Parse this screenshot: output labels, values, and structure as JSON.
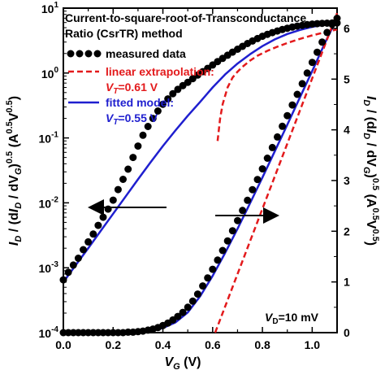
{
  "chart_data": {
    "type": "scatter",
    "title": "Current-to-square-root-of-Transconductance Ratio (CsrTR) method",
    "title_lines": [
      "Current-to-square-root-of-Transconductance",
      "Ratio (CsrTR) method"
    ],
    "xlabel_main": "V",
    "xlabel_sub": "G",
    "xlabel_unit": " (V)",
    "x_ticks": [
      "0.0",
      "0.2",
      "0.4",
      "0.6",
      "0.8",
      "1.0"
    ],
    "xlim": [
      0.0,
      1.1
    ],
    "ylabel_left": "I_D / (dI_D / dV_G)^0.5 (A^0.5 V^0.5)",
    "ylabel_left_parts": {
      "I1": "I",
      "sub1": "D",
      "mid": " / (d",
      "I2": "I",
      "sub2": "D",
      "mid2": " / dV",
      "sub3": "G",
      "close": ")",
      "sup1": "0.5",
      "unit_open": " (A",
      "sup2": "0.5",
      "unit_v": "V",
      "sup3": "0.5",
      "unit_close": ")"
    },
    "ylim_left": [
      0.0001,
      10
    ],
    "y_left_scale": "log",
    "y_left_ticks": [
      "10^-4",
      "10^-3",
      "10^-2",
      "10^-1",
      "10^0",
      "10^1"
    ],
    "y_left_tick_parts": [
      {
        "base": "10",
        "exp": "-4"
      },
      {
        "base": "10",
        "exp": "-3"
      },
      {
        "base": "10",
        "exp": "-2"
      },
      {
        "base": "10",
        "exp": "-1"
      },
      {
        "base": "10",
        "exp": "0"
      },
      {
        "base": "10",
        "exp": "1"
      }
    ],
    "ylabel_right": "I_D / (dI_D / dV_G)^0.5 (A^0.5 V^0.5)",
    "ylim_right": [
      0,
      6.4
    ],
    "y_right_ticks": [
      "0",
      "1",
      "2",
      "3",
      "4",
      "5",
      "6"
    ],
    "legend": [
      {
        "label": "measured data",
        "style": "markers",
        "color": "#000000"
      },
      {
        "label": "linear extrapolation:",
        "sublabel": "V_T=0.61 V",
        "sub_main": "V",
        "sub_sub": "T",
        "sub_rest": "=0.61 V",
        "style": "dashed",
        "color": "#e31a1c"
      },
      {
        "label": "fitted model:",
        "sublabel": "V_T=0.55 V",
        "sub_main": "V",
        "sub_sub": "T",
        "sub_rest": "=0.55 V",
        "style": "solid",
        "color": "#1f1fcf"
      }
    ],
    "legend_position": "top-left",
    "annotation": {
      "main": "V",
      "sub": "D",
      "rest": "=10 mV",
      "position": "bottom-right"
    },
    "arrows": [
      {
        "direction": "left",
        "meaning": "left axis"
      },
      {
        "direction": "right",
        "meaning": "right axis"
      }
    ],
    "series": [
      {
        "name": "measured data",
        "axis": "left",
        "color": "#000000",
        "x": [
          0.0,
          0.02,
          0.04,
          0.06,
          0.08,
          0.1,
          0.12,
          0.14,
          0.16,
          0.18,
          0.2,
          0.22,
          0.24,
          0.26,
          0.28,
          0.3,
          0.32,
          0.34,
          0.36,
          0.38,
          0.4,
          0.42,
          0.44,
          0.46,
          0.48,
          0.5,
          0.52,
          0.54,
          0.56,
          0.58,
          0.6,
          0.62,
          0.64,
          0.66,
          0.68,
          0.7,
          0.72,
          0.74,
          0.76,
          0.78,
          0.8,
          0.82,
          0.84,
          0.86,
          0.88,
          0.9,
          0.92,
          0.94,
          0.96,
          0.98,
          1.0,
          1.02,
          1.04,
          1.06,
          1.08,
          1.1
        ],
        "y": [
          0.00065,
          0.00085,
          0.0011,
          0.0014,
          0.0019,
          0.0025,
          0.0033,
          0.0045,
          0.006,
          0.008,
          0.011,
          0.016,
          0.023,
          0.033,
          0.05,
          0.075,
          0.11,
          0.15,
          0.2,
          0.26,
          0.33,
          0.4,
          0.48,
          0.56,
          0.64,
          0.72,
          0.82,
          0.93,
          1.05,
          1.18,
          1.33,
          1.5,
          1.68,
          1.88,
          2.1,
          2.33,
          2.58,
          2.85,
          3.12,
          3.4,
          3.68,
          3.95,
          4.2,
          4.45,
          4.68,
          4.9,
          5.1,
          5.28,
          5.43,
          5.57,
          5.68,
          5.77,
          5.83,
          5.87,
          5.9,
          5.92
        ]
      },
      {
        "name": "fitted model",
        "axis": "left",
        "color": "#1f1fcf",
        "x": [
          0.0,
          0.05,
          0.1,
          0.15,
          0.2,
          0.25,
          0.3,
          0.35,
          0.4,
          0.45,
          0.5,
          0.55,
          0.6,
          0.65,
          0.7,
          0.75,
          0.8,
          0.85,
          0.9,
          0.95,
          1.0,
          1.05,
          1.1
        ],
        "y": [
          0.0006,
          0.0011,
          0.002,
          0.0037,
          0.0068,
          0.0125,
          0.023,
          0.042,
          0.075,
          0.13,
          0.22,
          0.36,
          0.6,
          0.95,
          1.4,
          1.95,
          2.6,
          3.3,
          4.0,
          4.6,
          5.15,
          5.6,
          5.95
        ]
      },
      {
        "name": "linear extrapolation",
        "axis": "left",
        "color": "#e31a1c",
        "x": [
          0.62,
          0.63,
          0.64,
          0.66,
          0.68,
          0.7,
          0.72,
          0.75,
          0.78,
          0.82,
          0.86,
          0.9,
          0.95,
          1.0,
          1.05,
          1.1
        ],
        "y": [
          0.09,
          0.2,
          0.33,
          0.6,
          0.85,
          1.05,
          1.25,
          1.55,
          1.85,
          2.2,
          2.55,
          2.9,
          3.35,
          3.8,
          4.25,
          4.7
        ]
      },
      {
        "name": "measured data",
        "axis": "right",
        "color": "#000000",
        "x": [
          0.0,
          0.02,
          0.04,
          0.06,
          0.08,
          0.1,
          0.12,
          0.14,
          0.16,
          0.18,
          0.2,
          0.22,
          0.24,
          0.26,
          0.28,
          0.3,
          0.32,
          0.34,
          0.36,
          0.38,
          0.4,
          0.42,
          0.44,
          0.46,
          0.48,
          0.5,
          0.52,
          0.54,
          0.56,
          0.58,
          0.6,
          0.62,
          0.64,
          0.66,
          0.68,
          0.7,
          0.72,
          0.74,
          0.76,
          0.78,
          0.8,
          0.82,
          0.84,
          0.86,
          0.88,
          0.9,
          0.92,
          0.94,
          0.96,
          0.98,
          1.0,
          1.02,
          1.04,
          1.06,
          1.08,
          1.1
        ],
        "y": [
          0.0,
          0.0,
          0.0,
          0.0,
          0.0,
          0.0,
          0.0,
          0.0,
          0.0,
          0.0,
          0.0,
          0.0,
          0.0,
          0.01,
          0.01,
          0.02,
          0.03,
          0.05,
          0.07,
          0.1,
          0.14,
          0.19,
          0.25,
          0.32,
          0.4,
          0.5,
          0.62,
          0.76,
          0.92,
          1.08,
          1.25,
          1.43,
          1.62,
          1.81,
          2.01,
          2.21,
          2.41,
          2.61,
          2.82,
          3.02,
          3.23,
          3.44,
          3.65,
          3.86,
          4.07,
          4.28,
          4.49,
          4.7,
          4.91,
          5.12,
          5.33,
          5.53,
          5.73,
          5.92,
          6.08,
          6.2
        ]
      },
      {
        "name": "fitted model",
        "axis": "right",
        "color": "#1f1fcf",
        "x": [
          0.0,
          0.05,
          0.1,
          0.15,
          0.2,
          0.25,
          0.3,
          0.35,
          0.4,
          0.45,
          0.5,
          0.55,
          0.6,
          0.65,
          0.7,
          0.75,
          0.8,
          0.85,
          0.9,
          0.95,
          1.0,
          1.05,
          1.1
        ],
        "y": [
          0.0,
          0.0,
          0.0,
          0.0,
          0.0,
          0.01,
          0.02,
          0.04,
          0.09,
          0.2,
          0.4,
          0.72,
          1.12,
          1.57,
          2.05,
          2.55,
          3.06,
          3.58,
          4.1,
          4.63,
          5.16,
          5.7,
          6.2
        ]
      },
      {
        "name": "linear extrapolation",
        "axis": "right",
        "color": "#e31a1c",
        "x": [
          0.61,
          1.1
        ],
        "y": [
          0.0,
          6.3
        ]
      }
    ]
  }
}
